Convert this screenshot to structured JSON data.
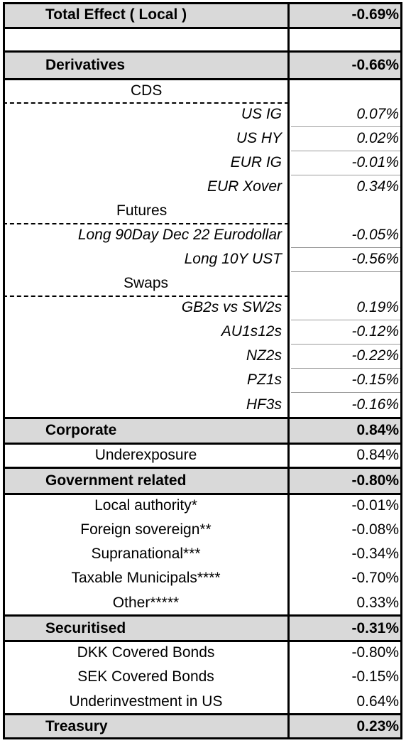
{
  "rows": [
    {
      "label": "Total Effect ( Local )",
      "value": "-0.69%"
    },
    {
      "label": "",
      "value": ""
    },
    {
      "label": "Derivatives",
      "value": "-0.66%"
    },
    {
      "label": "CDS",
      "value": ""
    },
    {
      "label": "US IG",
      "value": "0.07%"
    },
    {
      "label": "US HY",
      "value": "0.02%"
    },
    {
      "label": "EUR IG",
      "value": "-0.01%"
    },
    {
      "label": "EUR Xover",
      "value": "0.34%"
    },
    {
      "label": "Futures",
      "value": ""
    },
    {
      "label": "Long 90Day Dec 22 Eurodollar",
      "value": "-0.05%"
    },
    {
      "label": "Long 10Y UST",
      "value": "-0.56%"
    },
    {
      "label": "Swaps",
      "value": ""
    },
    {
      "label": "GB2s vs SW2s",
      "value": "0.19%"
    },
    {
      "label": "AU1s12s",
      "value": "-0.12%"
    },
    {
      "label": "NZ2s",
      "value": "-0.22%"
    },
    {
      "label": "PZ1s",
      "value": "-0.15%"
    },
    {
      "label": "HF3s",
      "value": "-0.16%"
    },
    {
      "label": "Corporate",
      "value": "0.84%"
    },
    {
      "label": "Underexposure",
      "value": "0.84%"
    },
    {
      "label": "Government related",
      "value": "-0.80%"
    },
    {
      "label": "Local authority*",
      "value": "-0.01%"
    },
    {
      "label": "Foreign sovereign**",
      "value": "-0.08%"
    },
    {
      "label": "Supranational***",
      "value": "-0.34%"
    },
    {
      "label": "Taxable Municipals****",
      "value": "-0.70%"
    },
    {
      "label": "Other*****",
      "value": "0.33%"
    },
    {
      "label": "Securitised",
      "value": "-0.31%"
    },
    {
      "label": "DKK Covered Bonds",
      "value": "-0.80%"
    },
    {
      "label": "SEK Covered Bonds",
      "value": "-0.15%"
    },
    {
      "label": "Underinvestment in US",
      "value": "0.64%"
    },
    {
      "label": "Treasury",
      "value": "0.23%"
    }
  ],
  "colors": {
    "header_band": "#d9d9d9",
    "grid": "#000000"
  }
}
